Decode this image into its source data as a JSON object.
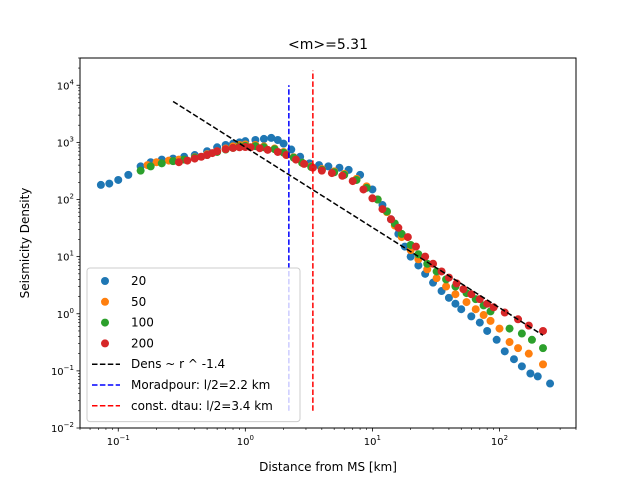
{
  "chart_data": {
    "type": "scatter",
    "title": "<m>=5.31",
    "xlabel": "Distance from MS [km]",
    "ylabel": "Seismicity Density",
    "xscale": "log",
    "yscale": "log",
    "xlim": [
      0.05,
      400
    ],
    "ylim": [
      0.01,
      30000
    ],
    "x_ticks": [
      {
        "value": 0.1,
        "base": "10",
        "exp": "−1"
      },
      {
        "value": 1,
        "base": "10",
        "exp": "0"
      },
      {
        "value": 10,
        "base": "10",
        "exp": "1"
      },
      {
        "value": 100,
        "base": "10",
        "exp": "2"
      }
    ],
    "y_ticks": [
      {
        "value": 0.01,
        "base": "10",
        "exp": "−2"
      },
      {
        "value": 0.1,
        "base": "10",
        "exp": "−1"
      },
      {
        "value": 1,
        "base": "10",
        "exp": "0"
      },
      {
        "value": 10,
        "base": "10",
        "exp": "1"
      },
      {
        "value": 100,
        "base": "10",
        "exp": "2"
      },
      {
        "value": 1000,
        "base": "10",
        "exp": "3"
      },
      {
        "value": 10000,
        "base": "10",
        "exp": "4"
      }
    ],
    "legend_position": "lower-left",
    "series": [
      {
        "name": "20",
        "color": "#1f77b4",
        "points": [
          [
            0.073,
            180
          ],
          [
            0.085,
            190
          ],
          [
            0.1,
            220
          ],
          [
            0.12,
            270
          ],
          [
            0.15,
            380
          ],
          [
            0.18,
            450
          ],
          [
            0.22,
            500
          ],
          [
            0.27,
            520
          ],
          [
            0.33,
            560
          ],
          [
            0.4,
            600
          ],
          [
            0.5,
            700
          ],
          [
            0.6,
            820
          ],
          [
            0.7,
            900
          ],
          [
            0.8,
            950
          ],
          [
            0.9,
            1000
          ],
          [
            1.0,
            1050
          ],
          [
            1.2,
            1100
          ],
          [
            1.4,
            1150
          ],
          [
            1.6,
            1200
          ],
          [
            1.8,
            1100
          ],
          [
            2.0,
            950
          ],
          [
            2.3,
            750
          ],
          [
            2.7,
            560
          ],
          [
            3.2,
            430
          ],
          [
            3.8,
            400
          ],
          [
            4.5,
            380
          ],
          [
            5.5,
            360
          ],
          [
            6.5,
            330
          ],
          [
            8,
            270
          ],
          [
            10,
            150
          ],
          [
            12,
            80
          ],
          [
            14,
            45
          ],
          [
            16,
            25
          ],
          [
            18,
            15
          ],
          [
            20,
            10
          ],
          [
            23,
            7
          ],
          [
            26,
            5
          ],
          [
            30,
            3.5
          ],
          [
            35,
            2.5
          ],
          [
            40,
            1.9
          ],
          [
            45,
            1.5
          ],
          [
            50,
            1.2
          ],
          [
            60,
            0.9
          ],
          [
            70,
            0.7
          ],
          [
            80,
            0.5
          ],
          [
            95,
            0.35
          ],
          [
            110,
            0.22
          ],
          [
            130,
            0.16
          ],
          [
            150,
            0.12
          ],
          [
            175,
            0.09
          ],
          [
            200,
            0.08
          ],
          [
            250,
            0.06
          ]
        ]
      },
      {
        "name": "50",
        "color": "#ff7f0e",
        "points": [
          [
            0.17,
            400
          ],
          [
            0.2,
            450
          ],
          [
            0.25,
            480
          ],
          [
            0.3,
            500
          ],
          [
            0.4,
            550
          ],
          [
            0.5,
            620
          ],
          [
            0.6,
            700
          ],
          [
            0.7,
            780
          ],
          [
            0.8,
            850
          ],
          [
            0.9,
            900
          ],
          [
            1.0,
            920
          ],
          [
            1.2,
            900
          ],
          [
            1.4,
            850
          ],
          [
            1.7,
            780
          ],
          [
            2.0,
            680
          ],
          [
            2.4,
            550
          ],
          [
            2.8,
            440
          ],
          [
            3.3,
            380
          ],
          [
            4,
            340
          ],
          [
            5,
            310
          ],
          [
            6,
            280
          ],
          [
            7.5,
            230
          ],
          [
            9,
            170
          ],
          [
            11,
            100
          ],
          [
            13,
            60
          ],
          [
            15,
            35
          ],
          [
            17,
            22
          ],
          [
            20,
            13
          ],
          [
            23,
            9
          ],
          [
            27,
            6
          ],
          [
            32,
            4.2
          ],
          [
            38,
            3
          ],
          [
            45,
            2.2
          ],
          [
            55,
            1.6
          ],
          [
            65,
            1.2
          ],
          [
            75,
            0.95
          ],
          [
            85,
            0.75
          ],
          [
            100,
            0.55
          ],
          [
            120,
            0.32
          ],
          [
            140,
            0.25
          ],
          [
            170,
            0.2
          ],
          [
            220,
            0.13
          ]
        ]
      },
      {
        "name": "100",
        "color": "#2ca02c",
        "points": [
          [
            0.15,
            320
          ],
          [
            0.18,
            380
          ],
          [
            0.22,
            430
          ],
          [
            0.27,
            470
          ],
          [
            0.33,
            500
          ],
          [
            0.4,
            540
          ],
          [
            0.5,
            600
          ],
          [
            0.6,
            680
          ],
          [
            0.7,
            750
          ],
          [
            0.8,
            800
          ],
          [
            0.9,
            850
          ],
          [
            1.0,
            870
          ],
          [
            1.2,
            860
          ],
          [
            1.4,
            820
          ],
          [
            1.7,
            760
          ],
          [
            2.0,
            660
          ],
          [
            2.4,
            540
          ],
          [
            2.8,
            440
          ],
          [
            3.3,
            370
          ],
          [
            4,
            330
          ],
          [
            5,
            300
          ],
          [
            6,
            270
          ],
          [
            7.5,
            220
          ],
          [
            9,
            160
          ],
          [
            11,
            100
          ],
          [
            13,
            62
          ],
          [
            15,
            38
          ],
          [
            17,
            25
          ],
          [
            20,
            16
          ],
          [
            23,
            11
          ],
          [
            27,
            7.5
          ],
          [
            32,
            5.5
          ],
          [
            38,
            4
          ],
          [
            45,
            3
          ],
          [
            55,
            2.3
          ],
          [
            65,
            1.8
          ],
          [
            75,
            1.4
          ],
          [
            85,
            1.1
          ],
          [
            120,
            0.55
          ],
          [
            150,
            0.45
          ],
          [
            180,
            0.35
          ],
          [
            220,
            0.25
          ]
        ]
      },
      {
        "name": "200",
        "color": "#d62728",
        "points": [
          [
            0.3,
            450
          ],
          [
            0.35,
            480
          ],
          [
            0.4,
            520
          ],
          [
            0.45,
            560
          ],
          [
            0.5,
            600
          ],
          [
            0.55,
            650
          ],
          [
            0.6,
            700
          ],
          [
            0.7,
            760
          ],
          [
            0.8,
            800
          ],
          [
            0.9,
            820
          ],
          [
            1.0,
            830
          ],
          [
            1.1,
            820
          ],
          [
            1.3,
            790
          ],
          [
            1.5,
            740
          ],
          [
            1.8,
            680
          ],
          [
            2.1,
            600
          ],
          [
            2.5,
            500
          ],
          [
            2.9,
            420
          ],
          [
            3.4,
            360
          ],
          [
            4,
            320
          ],
          [
            4.8,
            290
          ],
          [
            5.8,
            260
          ],
          [
            7,
            210
          ],
          [
            8.5,
            150
          ],
          [
            10,
            105
          ],
          [
            12,
            68
          ],
          [
            14,
            45
          ],
          [
            16,
            32
          ],
          [
            19,
            22
          ],
          [
            22,
            15
          ],
          [
            26,
            10
          ],
          [
            30,
            7.5
          ],
          [
            35,
            5.5
          ],
          [
            40,
            4.3
          ],
          [
            46,
            3.4
          ],
          [
            52,
            2.7
          ],
          [
            60,
            2.2
          ],
          [
            70,
            1.8
          ],
          [
            80,
            1.5
          ],
          [
            90,
            1.3
          ],
          [
            110,
            1.05
          ],
          [
            140,
            0.8
          ],
          [
            170,
            0.62
          ],
          [
            220,
            0.5
          ]
        ]
      }
    ],
    "lines": [
      {
        "name": "Dens ~ r ^ -1.4",
        "color": "#000000",
        "style": "dashed",
        "x": [
          0.27,
          220
        ],
        "y": [
          5200,
          0.42
        ]
      },
      {
        "name": "Moradpour: l/2=2.2 km",
        "color": "#0000ff",
        "style": "dashed",
        "x": [
          2.2,
          2.2
        ],
        "y": [
          0.02,
          10000
        ]
      },
      {
        "name": "const. dtau: l/2=3.4 km",
        "color": "#ff0000",
        "style": "dashed",
        "x": [
          3.4,
          3.4
        ],
        "y": [
          0.02,
          18000
        ]
      }
    ]
  }
}
